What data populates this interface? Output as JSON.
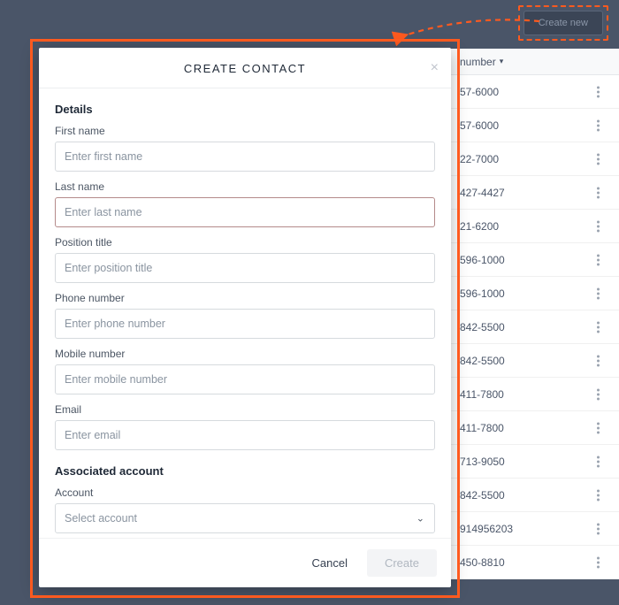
{
  "colors": {
    "page_bg": "#4a5568",
    "highlight": "#ff5a1f",
    "modal_bg": "#ffffff",
    "text_primary": "#1f2937",
    "text_muted": "#4b5563",
    "placeholder": "#8a94a0",
    "border": "#d6dade",
    "create_new_bg": "#3b4556",
    "create_new_text": "#8b96a8"
  },
  "callout": {
    "create_new_label": "Create new"
  },
  "background": {
    "column_header": "number",
    "rows": [
      "57-6000",
      "57-6000",
      "22-7000",
      "427-4427",
      "21-6200",
      "596-1000",
      "596-1000",
      "842-5500",
      "842-5500",
      "411-7800",
      "411-7800",
      "713-9050",
      "842-5500",
      "914956203",
      "450-8810"
    ]
  },
  "modal": {
    "title": "CREATE CONTACT",
    "details_section": "Details",
    "fields": {
      "first_name": {
        "label": "First name",
        "placeholder": "Enter first name",
        "value": ""
      },
      "last_name": {
        "label": "Last name",
        "placeholder": "Enter last name",
        "value": ""
      },
      "position_title": {
        "label": "Position title",
        "placeholder": "Enter position title",
        "value": ""
      },
      "phone_number": {
        "label": "Phone number",
        "placeholder": "Enter phone number",
        "value": ""
      },
      "mobile_number": {
        "label": "Mobile number",
        "placeholder": "Enter mobile number",
        "value": ""
      },
      "email": {
        "label": "Email",
        "placeholder": "Enter email",
        "value": ""
      }
    },
    "associated_section": "Associated account",
    "account": {
      "label": "Account",
      "placeholder": "Select account",
      "value": ""
    },
    "footer": {
      "cancel": "Cancel",
      "create": "Create"
    }
  }
}
